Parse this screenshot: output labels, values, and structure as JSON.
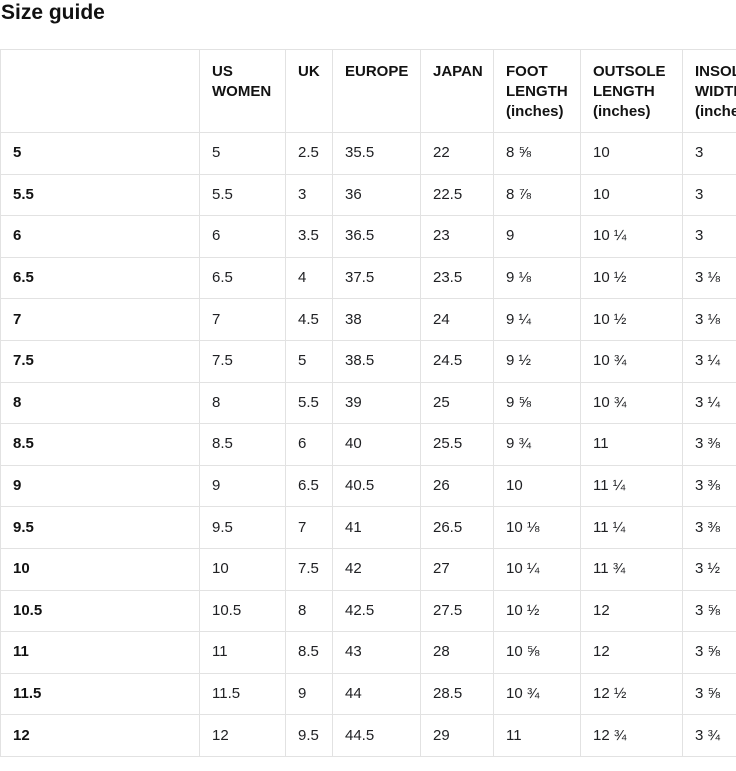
{
  "title": "Size guide",
  "table": {
    "columns": [
      "",
      "US WOMEN",
      "UK",
      "EUROPE",
      "JAPAN",
      "FOOT LENGTH (inches)",
      "OUTSOLE LENGTH (inches)",
      "INSOLE WIDTH (inches)"
    ],
    "rows": [
      [
        "5",
        "5",
        "2.5",
        "35.5",
        "22",
        "8 ⅝",
        "10",
        "3"
      ],
      [
        "5.5",
        "5.5",
        "3",
        "36",
        "22.5",
        "8 ⅞",
        "10",
        "3"
      ],
      [
        "6",
        "6",
        "3.5",
        "36.5",
        "23",
        "9",
        "10 ¼",
        "3"
      ],
      [
        "6.5",
        "6.5",
        "4",
        "37.5",
        "23.5",
        "9 ⅛",
        "10 ½",
        "3 ⅛"
      ],
      [
        "7",
        "7",
        "4.5",
        "38",
        "24",
        "9 ¼",
        "10 ½",
        "3 ⅛"
      ],
      [
        "7.5",
        "7.5",
        "5",
        "38.5",
        "24.5",
        "9 ½",
        "10 ¾",
        "3 ¼"
      ],
      [
        "8",
        "8",
        "5.5",
        "39",
        "25",
        "9 ⅝",
        "10 ¾",
        "3 ¼"
      ],
      [
        "8.5",
        "8.5",
        "6",
        "40",
        "25.5",
        "9 ¾",
        "11",
        "3 ⅜"
      ],
      [
        "9",
        "9",
        "6.5",
        "40.5",
        "26",
        "10",
        "11 ¼",
        "3 ⅜"
      ],
      [
        "9.5",
        "9.5",
        "7",
        "41",
        "26.5",
        "10 ⅛",
        "11 ¼",
        "3 ⅜"
      ],
      [
        "10",
        "10",
        "7.5",
        "42",
        "27",
        "10 ¼",
        "11 ¾",
        "3 ½"
      ],
      [
        "10.5",
        "10.5",
        "8",
        "42.5",
        "27.5",
        "10 ½",
        "12",
        "3 ⅝"
      ],
      [
        "11",
        "11",
        "8.5",
        "43",
        "28",
        "10 ⅝",
        "12",
        "3 ⅝"
      ],
      [
        "11.5",
        "11.5",
        "9",
        "44",
        "28.5",
        "10 ¾",
        "12 ½",
        "3 ⅝"
      ],
      [
        "12",
        "12",
        "9.5",
        "44.5",
        "29",
        "11",
        "12 ¾",
        "3 ¾"
      ]
    ]
  },
  "colors": {
    "border": "#e2e2e2",
    "heading_text": "#121212",
    "body_text": "#202124",
    "background": "#ffffff"
  }
}
